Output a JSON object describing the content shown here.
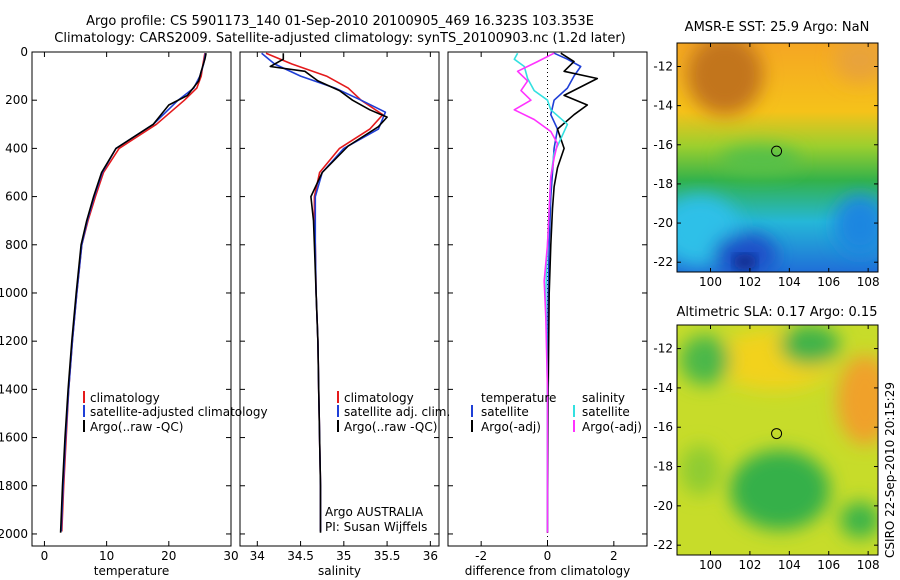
{
  "header": {
    "line1": "Argo profile: CS 5901173_140 01-Sep-2010 20100905_469 16.323S 103.353E",
    "line2": "Climatology: CARS2009. Satellite-adjusted climatology: synTS_20100903.nc (1.2d later)"
  },
  "colors": {
    "climatology": "#e41a1c",
    "satellite": "#1f3fd6",
    "argo": "#000000",
    "salinity_satellite": "#33e0e0",
    "salinity_argo": "#ff33ff"
  },
  "side_label": "CSIRO 22-Sep-2010 20:15:29",
  "chart_data": [
    {
      "type": "line",
      "name": "temperature-profile",
      "xlabel": "temperature",
      "xlim": [
        -2,
        30
      ],
      "ylim": [
        2050,
        0
      ],
      "xticks": [
        "0",
        "10",
        "20",
        "30"
      ],
      "yticks": [
        "0",
        "200",
        "400",
        "600",
        "800",
        "1000",
        "1200",
        "1400",
        "1600",
        "1800",
        "2000"
      ],
      "legend": [
        "climatology",
        "satellite-adjusted climatology",
        "Argo(..raw -QC)"
      ],
      "series": [
        {
          "name": "climatology",
          "color_key": "climatology",
          "points": [
            [
              25.8,
              5
            ],
            [
              25.5,
              50
            ],
            [
              25.2,
              100
            ],
            [
              24.5,
              150
            ],
            [
              22.5,
              200
            ],
            [
              18,
              300
            ],
            [
              12,
              400
            ],
            [
              9.5,
              500
            ],
            [
              8.2,
              600
            ],
            [
              7,
              700
            ],
            [
              6,
              800
            ],
            [
              5.2,
              1000
            ],
            [
              4.5,
              1200
            ],
            [
              3.9,
              1400
            ],
            [
              3.5,
              1600
            ],
            [
              3.1,
              1800
            ],
            [
              2.8,
              1990
            ]
          ]
        },
        {
          "name": "satellite-adjusted",
          "color_key": "satellite",
          "points": [
            [
              25.9,
              5
            ],
            [
              25.6,
              50
            ],
            [
              25,
              100
            ],
            [
              24,
              150
            ],
            [
              21.5,
              200
            ],
            [
              17.5,
              300
            ],
            [
              11.5,
              400
            ],
            [
              9.3,
              500
            ],
            [
              8,
              600
            ],
            [
              6.9,
              700
            ],
            [
              6,
              800
            ],
            [
              5.2,
              1000
            ],
            [
              4.5,
              1200
            ],
            [
              3.9,
              1400
            ],
            [
              3.4,
              1600
            ],
            [
              3,
              1800
            ],
            [
              2.7,
              1990
            ]
          ]
        },
        {
          "name": "argo",
          "color_key": "argo",
          "points": [
            [
              26,
              5
            ],
            [
              25.8,
              30
            ],
            [
              25.2,
              80
            ],
            [
              24.8,
              120
            ],
            [
              23,
              180
            ],
            [
              20,
              220
            ],
            [
              17.5,
              300
            ],
            [
              11.5,
              400
            ],
            [
              9.2,
              500
            ],
            [
              7.9,
              600
            ],
            [
              6.8,
              700
            ],
            [
              5.9,
              800
            ],
            [
              5.1,
              1000
            ],
            [
              4.4,
              1200
            ],
            [
              3.8,
              1400
            ],
            [
              3.3,
              1600
            ],
            [
              2.9,
              1800
            ],
            [
              2.6,
              1995
            ]
          ]
        }
      ]
    },
    {
      "type": "line",
      "name": "salinity-profile",
      "xlabel": "salinity",
      "xlim": [
        33.8,
        36.1
      ],
      "ylim": [
        2050,
        0
      ],
      "xticks": [
        "34",
        "34.5",
        "35",
        "35.5",
        "36"
      ],
      "legend": [
        "climatology",
        "satellite adj. clim.",
        "Argo(..raw -QC)"
      ],
      "annotation": [
        "Argo AUSTRALIA",
        "PI: Susan Wijffels"
      ],
      "series": [
        {
          "name": "climatology",
          "color_key": "climatology",
          "points": [
            [
              34.1,
              5
            ],
            [
              34.4,
              50
            ],
            [
              34.8,
              100
            ],
            [
              35.05,
              150
            ],
            [
              35.2,
              200
            ],
            [
              35.45,
              260
            ],
            [
              35.3,
              320
            ],
            [
              34.95,
              400
            ],
            [
              34.72,
              500
            ],
            [
              34.66,
              600
            ],
            [
              34.66,
              700
            ],
            [
              34.67,
              800
            ],
            [
              34.68,
              1000
            ],
            [
              34.7,
              1200
            ],
            [
              34.71,
              1400
            ],
            [
              34.72,
              1600
            ],
            [
              34.73,
              1800
            ],
            [
              34.73,
              1990
            ]
          ]
        },
        {
          "name": "satellite-adjusted",
          "color_key": "satellite",
          "points": [
            [
              34.05,
              5
            ],
            [
              34.2,
              50
            ],
            [
              34.5,
              100
            ],
            [
              34.9,
              150
            ],
            [
              35.2,
              200
            ],
            [
              35.48,
              250
            ],
            [
              35.4,
              320
            ],
            [
              35.0,
              400
            ],
            [
              34.75,
              500
            ],
            [
              34.67,
              600
            ],
            [
              34.67,
              700
            ],
            [
              34.67,
              800
            ],
            [
              34.68,
              1000
            ],
            [
              34.7,
              1200
            ],
            [
              34.71,
              1400
            ],
            [
              34.72,
              1600
            ],
            [
              34.73,
              1800
            ],
            [
              34.73,
              1990
            ]
          ]
        },
        {
          "name": "argo",
          "color_key": "argo",
          "points": [
            [
              34.3,
              5
            ],
            [
              34.3,
              30
            ],
            [
              34.15,
              60
            ],
            [
              34.55,
              80
            ],
            [
              34.7,
              120
            ],
            [
              34.95,
              160
            ],
            [
              35.1,
              200
            ],
            [
              35.3,
              240
            ],
            [
              35.5,
              270
            ],
            [
              35.4,
              310
            ],
            [
              35.05,
              390
            ],
            [
              34.75,
              500
            ],
            [
              34.62,
              600
            ],
            [
              34.65,
              700
            ],
            [
              34.66,
              800
            ],
            [
              34.68,
              1000
            ],
            [
              34.7,
              1200
            ],
            [
              34.71,
              1400
            ],
            [
              34.72,
              1600
            ],
            [
              34.73,
              1800
            ],
            [
              34.73,
              1995
            ]
          ]
        }
      ]
    },
    {
      "type": "line",
      "name": "difference-profile",
      "xlabel": "difference from climatology",
      "xlim": [
        -3,
        3
      ],
      "ylim": [
        2050,
        0
      ],
      "xticks": [
        "-2",
        "0",
        "2"
      ],
      "legend_columns": [
        {
          "heading": "temperature",
          "items": [
            "satellite",
            "Argo(-adj)"
          ]
        },
        {
          "heading": "salinity",
          "items": [
            "satellite",
            "Argo(-adj)"
          ]
        }
      ],
      "series": [
        {
          "name": "temperature-satellite",
          "color_key": "satellite",
          "points": [
            [
              0.2,
              5
            ],
            [
              0.6,
              30
            ],
            [
              1.0,
              60
            ],
            [
              0.8,
              100
            ],
            [
              0.6,
              150
            ],
            [
              0.2,
              200
            ],
            [
              0.1,
              260
            ],
            [
              0.3,
              320
            ],
            [
              0.2,
              400
            ],
            [
              0.15,
              500
            ],
            [
              0.1,
              600
            ],
            [
              0.05,
              800
            ],
            [
              0.02,
              1000
            ],
            [
              0.0,
              1400
            ],
            [
              0.0,
              1990
            ]
          ]
        },
        {
          "name": "temperature-argo",
          "color_key": "argo",
          "points": [
            [
              0.4,
              5
            ],
            [
              0.8,
              40
            ],
            [
              0.5,
              80
            ],
            [
              1.5,
              110
            ],
            [
              0.5,
              180
            ],
            [
              1.2,
              220
            ],
            [
              0.8,
              260
            ],
            [
              0.3,
              320
            ],
            [
              0.5,
              400
            ],
            [
              0.3,
              480
            ],
            [
              0.2,
              560
            ],
            [
              0.15,
              650
            ],
            [
              0.1,
              800
            ],
            [
              0.05,
              1000
            ],
            [
              0.02,
              1400
            ],
            [
              0.0,
              1995
            ]
          ]
        },
        {
          "name": "salinity-satellite",
          "color_key": "salinity_satellite",
          "points": [
            [
              -0.9,
              5
            ],
            [
              -1.0,
              30
            ],
            [
              -0.7,
              60
            ],
            [
              -0.6,
              110
            ],
            [
              -0.4,
              160
            ],
            [
              0.0,
              200
            ],
            [
              0.1,
              240
            ],
            [
              0.6,
              300
            ],
            [
              0.4,
              360
            ],
            [
              0.2,
              420
            ],
            [
              0.1,
              520
            ],
            [
              0.05,
              650
            ],
            [
              0.0,
              800
            ],
            [
              -0.05,
              1000
            ],
            [
              0.0,
              1400
            ],
            [
              0.0,
              1990
            ]
          ]
        },
        {
          "name": "salinity-argo",
          "color_key": "salinity_argo",
          "points": [
            [
              0.2,
              5
            ],
            [
              -0.3,
              40
            ],
            [
              -0.9,
              80
            ],
            [
              -0.6,
              120
            ],
            [
              -0.8,
              160
            ],
            [
              -0.5,
              200
            ],
            [
              -1.0,
              240
            ],
            [
              -0.4,
              280
            ],
            [
              0.1,
              330
            ],
            [
              0.3,
              380
            ],
            [
              0.2,
              440
            ],
            [
              0.1,
              520
            ],
            [
              0.05,
              650
            ],
            [
              0.0,
              800
            ],
            [
              -0.1,
              950
            ],
            [
              -0.05,
              1100
            ],
            [
              0.0,
              1400
            ],
            [
              0.0,
              1995
            ]
          ]
        }
      ]
    },
    {
      "type": "heatmap",
      "name": "sst-map",
      "title": "AMSR-E SST: 25.9 Argo: NaN",
      "xlim": [
        98.3,
        108.5
      ],
      "ylim": [
        -22.5,
        -10.8
      ],
      "xticks": [
        "100",
        "102",
        "104",
        "106",
        "108"
      ],
      "yticks": [
        "-12",
        "-14",
        "-16",
        "-18",
        "-20",
        "-22"
      ],
      "marker": {
        "lon": 103.353,
        "lat": -16.323
      }
    },
    {
      "type": "heatmap",
      "name": "sla-map",
      "title": "Altimetric SLA: 0.17 Argo: 0.15",
      "xlim": [
        98.3,
        108.5
      ],
      "ylim": [
        -22.5,
        -10.8
      ],
      "xticks": [
        "100",
        "102",
        "104",
        "106",
        "108"
      ],
      "yticks": [
        "-12",
        "-14",
        "-16",
        "-18",
        "-20",
        "-22"
      ],
      "marker": {
        "lon": 103.353,
        "lat": -16.323
      }
    }
  ]
}
